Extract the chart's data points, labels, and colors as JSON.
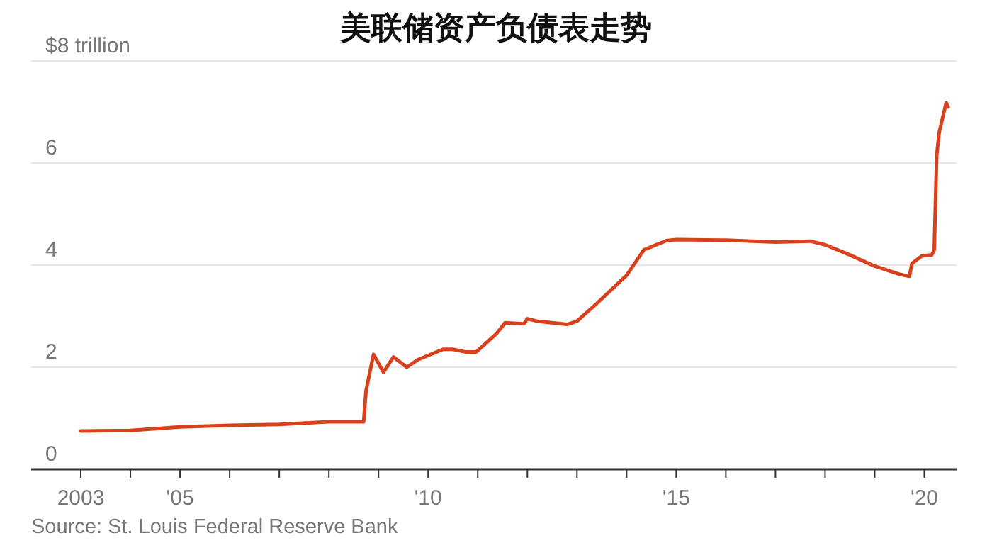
{
  "chart_data": {
    "type": "line",
    "title": "美联储资产负债表走势",
    "x": [
      2003.0,
      2004.0,
      2005.0,
      2006.0,
      2007.0,
      2008.0,
      2008.7,
      2008.75,
      2008.9,
      2009.1,
      2009.3,
      2009.57,
      2009.8,
      2010.3,
      2010.5,
      2010.75,
      2010.97,
      2011.37,
      2011.55,
      2011.93,
      2012.0,
      2012.2,
      2012.8,
      2013.0,
      2013.4,
      2014.0,
      2014.35,
      2014.8,
      2015.0,
      2016.0,
      2017.0,
      2017.7,
      2018.0,
      2018.5,
      2019.0,
      2019.5,
      2019.7,
      2019.75,
      2019.95,
      2020.15,
      2020.2,
      2020.25,
      2020.3,
      2020.44,
      2020.48
    ],
    "series": [
      {
        "color": "#d9401c",
        "values": [
          0.75,
          0.76,
          0.83,
          0.86,
          0.88,
          0.93,
          0.93,
          1.55,
          2.25,
          1.9,
          2.2,
          2.0,
          2.15,
          2.35,
          2.35,
          2.3,
          2.3,
          2.65,
          2.87,
          2.85,
          2.95,
          2.9,
          2.84,
          2.9,
          3.25,
          3.8,
          4.3,
          4.48,
          4.5,
          4.49,
          4.45,
          4.47,
          4.4,
          4.2,
          3.98,
          3.82,
          3.78,
          4.03,
          4.18,
          4.2,
          4.3,
          6.15,
          6.6,
          7.18,
          7.1
        ]
      }
    ],
    "xlim": [
      2002.0,
      2020.65
    ],
    "xticks": [
      {
        "value": 2003,
        "label": "2003"
      },
      {
        "value": 2004,
        "label": null
      },
      {
        "value": 2005,
        "label": "'05"
      },
      {
        "value": 2006,
        "label": null
      },
      {
        "value": 2007,
        "label": null
      },
      {
        "value": 2008,
        "label": null
      },
      {
        "value": 2009,
        "label": null
      },
      {
        "value": 2010,
        "label": "'10"
      },
      {
        "value": 2011,
        "label": null
      },
      {
        "value": 2012,
        "label": null
      },
      {
        "value": 2013,
        "label": null
      },
      {
        "value": 2014,
        "label": null
      },
      {
        "value": 2015,
        "label": "'15"
      },
      {
        "value": 2016,
        "label": null
      },
      {
        "value": 2017,
        "label": null
      },
      {
        "value": 2018,
        "label": null
      },
      {
        "value": 2019,
        "label": null
      },
      {
        "value": 2020,
        "label": "'20"
      }
    ],
    "ylim": [
      0,
      8
    ],
    "yticks": [
      0,
      2,
      4,
      6,
      {
        "value": 8,
        "label": "$8 trillion"
      }
    ],
    "grid": "y",
    "marker": "none",
    "line_style": "solid",
    "annotations": [
      "Source: St. Louis Federal Reserve Bank"
    ]
  }
}
